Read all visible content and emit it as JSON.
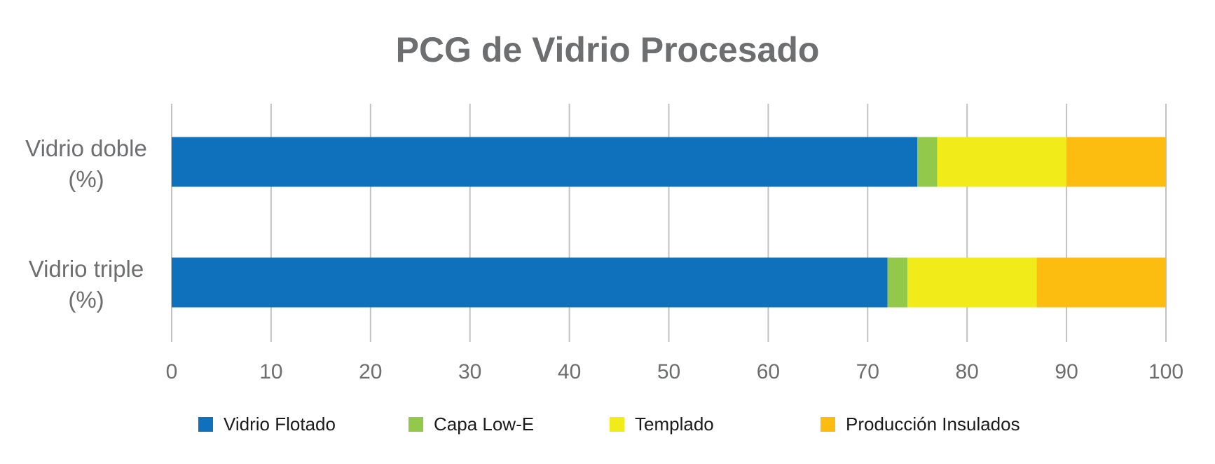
{
  "chart_data": {
    "type": "bar",
    "orientation": "horizontal",
    "stacked": true,
    "title": "PCG de Vidrio Procesado",
    "categories": [
      [
        "Vidrio doble",
        "(%)"
      ],
      [
        "Vidrio triple",
        "(%)"
      ]
    ],
    "series": [
      {
        "name": "Vidrio Flotado",
        "color": "#0f71bb",
        "values": [
          75,
          72
        ]
      },
      {
        "name": "Capa Low-E",
        "color": "#92c94a",
        "values": [
          2,
          2
        ]
      },
      {
        "name": "Templado",
        "color": "#f1eb19",
        "values": [
          13,
          13
        ]
      },
      {
        "name": "Producción Insulados",
        "color": "#fdbd10",
        "values": [
          10,
          13
        ]
      }
    ],
    "xlim": [
      0,
      100
    ],
    "xticks": [
      0,
      10,
      20,
      30,
      40,
      50,
      60,
      70,
      80,
      90,
      100
    ],
    "grid": true,
    "legend": "bottom"
  }
}
